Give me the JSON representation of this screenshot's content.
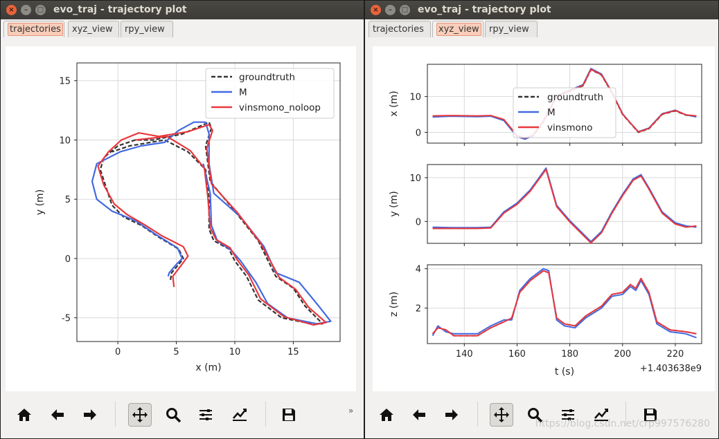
{
  "window_left": {
    "title": "evo_traj - trajectory plot",
    "close_glyph": "×",
    "min_glyph": "–",
    "max_glyph": "□",
    "tabs": [
      "trajectories",
      "xyz_view",
      "rpy_view"
    ],
    "active_tab": "trajectories"
  },
  "window_right": {
    "title": "evo_traj - trajectory plot",
    "close_glyph": "×",
    "min_glyph": "–",
    "max_glyph": "□",
    "tabs": [
      "trajectories",
      "xyz_view",
      "rpy_view"
    ],
    "active_tab": "xyz_view"
  },
  "toolbar": {
    "icons": [
      "home-icon",
      "back-arrow-icon",
      "forward-arrow-icon",
      "pan-icon",
      "zoom-icon",
      "subplots-icon",
      "edit-axes-icon",
      "save-icon"
    ],
    "more": "»"
  },
  "watermark": "https://blog.csdn.net/crp997576280",
  "colors": {
    "groundtruth": "#333333",
    "M": "#4169e1",
    "vinsmono": "#e8383d"
  },
  "chart_data": [
    {
      "type": "line",
      "id": "trajectories",
      "xlabel": "x (m)",
      "ylabel": "y (m)",
      "xlim": [
        -3.5,
        19
      ],
      "ylim": [
        -7,
        16.5
      ],
      "xticks": [
        0,
        5,
        10,
        15
      ],
      "yticks": [
        -5,
        0,
        5,
        10,
        15
      ],
      "grid": true,
      "legend_position": "top-right",
      "legend": [
        "groundtruth",
        "M",
        "vinsmono_noloop"
      ],
      "series": [
        {
          "name": "groundtruth",
          "style": "dashed",
          "x": [
            4.5,
            4.6,
            5.2,
            5.6,
            5.2,
            3.5,
            2.0,
            0.5,
            -0.5,
            -1.0,
            -1.5,
            -1.2,
            0.0,
            1.5,
            3.0,
            5.5,
            7.8,
            8.0,
            7.5,
            7.9,
            10.0,
            12.0,
            13.5,
            15.0,
            16.0,
            17.5,
            16.5,
            14.0,
            12.0,
            11.0,
            10.0,
            9.5,
            8.2,
            7.8,
            7.8,
            7.5,
            6.0,
            4.0,
            1.0,
            -0.5
          ],
          "y": [
            -1.8,
            -1.2,
            -0.5,
            0.0,
            0.8,
            1.8,
            2.8,
            3.5,
            4.5,
            6.0,
            7.5,
            8.5,
            9.5,
            10.0,
            10.0,
            10.5,
            11.5,
            11.0,
            9.5,
            6.5,
            4.0,
            1.5,
            -1.5,
            -2.5,
            -4.0,
            -5.5,
            -5.5,
            -5.0,
            -3.5,
            -1.5,
            -0.2,
            0.8,
            1.5,
            2.5,
            5.0,
            7.5,
            9.0,
            10.0,
            9.5,
            9.0
          ]
        },
        {
          "name": "M",
          "style": "solid",
          "x": [
            4.3,
            4.4,
            5.0,
            5.5,
            5.1,
            3.3,
            1.5,
            -0.5,
            -1.8,
            -2.2,
            -1.8,
            0.2,
            2.0,
            4.0,
            5.2,
            6.5,
            7.5,
            7.8,
            7.8,
            8.2,
            10.5,
            12.5,
            13.5,
            15.5,
            17.0,
            18.2,
            17.0,
            14.5,
            12.8,
            11.8,
            10.5,
            9.7,
            8.5,
            8.0,
            7.9,
            7.3
          ],
          "y": [
            -1.5,
            -1.2,
            -0.5,
            0.0,
            0.9,
            2.0,
            3.2,
            4.0,
            5.0,
            6.5,
            8.0,
            9.0,
            9.5,
            9.8,
            10.8,
            11.5,
            11.5,
            10.5,
            8.0,
            5.5,
            3.5,
            1.0,
            -1.2,
            -2.0,
            -3.8,
            -5.3,
            -5.5,
            -5.0,
            -3.8,
            -2.0,
            -0.2,
            0.7,
            1.5,
            2.8,
            5.5,
            8.0
          ]
        },
        {
          "name": "vinsmono_noloop",
          "style": "solid",
          "x": [
            4.8,
            4.7,
            5.4,
            6.0,
            5.6,
            3.8,
            2.2,
            0.8,
            -0.3,
            -1.2,
            -1.7,
            -0.8,
            0.3,
            1.8,
            3.5,
            6.0,
            7.8,
            8.1,
            7.6,
            8.0,
            10.2,
            12.2,
            13.8,
            15.2,
            16.3,
            17.8,
            16.7,
            14.2,
            12.2,
            11.2,
            10.2,
            9.6,
            8.4,
            7.9,
            7.7,
            7.4,
            6.2,
            4.2,
            1.5
          ],
          "y": [
            -2.4,
            -1.5,
            -0.6,
            0.2,
            1.0,
            1.9,
            2.9,
            3.7,
            4.6,
            6.2,
            7.8,
            9.0,
            10.0,
            10.6,
            10.3,
            10.7,
            11.3,
            10.8,
            9.3,
            6.3,
            3.9,
            1.3,
            -1.6,
            -2.6,
            -4.1,
            -5.4,
            -5.6,
            -4.9,
            -3.4,
            -1.4,
            -0.1,
            0.9,
            1.6,
            2.6,
            5.1,
            7.6,
            9.1,
            10.3,
            10.0
          ]
        }
      ]
    },
    {
      "type": "line",
      "id": "xyz_view",
      "xlabel": "t (s)",
      "x_offset_label": "+1.403638e9",
      "xlim": [
        126,
        230
      ],
      "xticks": [
        140,
        160,
        180,
        200,
        220
      ],
      "grid": true,
      "legend_position": "center",
      "legend": [
        "groundtruth",
        "M",
        "vinsmono"
      ],
      "subplots": [
        {
          "ylabel": "x (m)",
          "ylim": [
            -3,
            19
          ],
          "yticks": [
            0,
            10
          ],
          "t": [
            128,
            135,
            145,
            150,
            155,
            160,
            163,
            166,
            170,
            175,
            180,
            185,
            188,
            192,
            196,
            200,
            203,
            206,
            210,
            215,
            220,
            224,
            228
          ],
          "groundtruth": [
            4.5,
            4.6,
            4.5,
            4.6,
            3.5,
            -1.0,
            -1.8,
            -1.0,
            3.0,
            10.0,
            11.5,
            13.0,
            17.5,
            16.0,
            11.0,
            5.0,
            2.5,
            0.0,
            1.0,
            5.0,
            6.0,
            4.8,
            4.5
          ],
          "M": [
            4.3,
            4.5,
            4.4,
            4.5,
            3.3,
            -1.2,
            -1.9,
            -1.0,
            3.2,
            10.2,
            11.8,
            13.3,
            17.8,
            16.3,
            11.2,
            5.2,
            2.6,
            0.2,
            1.2,
            5.2,
            6.2,
            4.9,
            4.3
          ],
          "vinsmono": [
            4.6,
            4.7,
            4.6,
            4.7,
            3.6,
            -0.9,
            -1.6,
            -0.8,
            3.1,
            10.1,
            11.6,
            13.1,
            17.6,
            16.1,
            11.1,
            5.1,
            2.6,
            0.1,
            1.1,
            5.1,
            6.1,
            4.9,
            4.6
          ]
        },
        {
          "ylabel": "y (m)",
          "ylim": [
            -5,
            13
          ],
          "yticks": [
            0,
            10
          ],
          "t": [
            128,
            135,
            145,
            150,
            155,
            160,
            165,
            168,
            171,
            175,
            180,
            185,
            188,
            192,
            196,
            200,
            204,
            207,
            210,
            215,
            220,
            224,
            228
          ],
          "groundtruth": [
            -1.5,
            -1.5,
            -1.5,
            -1.4,
            2.0,
            4.0,
            7.0,
            9.5,
            12.0,
            3.5,
            0.0,
            -3.0,
            -4.8,
            -2.5,
            2.0,
            6.0,
            9.5,
            10.5,
            7.5,
            2.0,
            -0.5,
            -1.2,
            -1.1
          ],
          "M": [
            -1.3,
            -1.4,
            -1.4,
            -1.3,
            2.2,
            4.2,
            7.2,
            9.7,
            12.2,
            3.7,
            0.2,
            -2.8,
            -4.6,
            -2.3,
            2.2,
            6.2,
            9.7,
            10.7,
            7.7,
            2.2,
            -0.3,
            -1.0,
            -1.3
          ],
          "vinsmono": [
            -1.6,
            -1.6,
            -1.6,
            -1.5,
            1.9,
            3.9,
            6.9,
            9.4,
            11.9,
            3.4,
            -0.1,
            -3.1,
            -4.9,
            -2.6,
            1.9,
            5.9,
            9.4,
            10.4,
            7.4,
            1.9,
            -0.6,
            -1.3,
            -1.0
          ]
        },
        {
          "ylabel": "z (m)",
          "ylim": [
            0.2,
            4.2
          ],
          "yticks": [
            2,
            4
          ],
          "t": [
            128,
            130,
            133,
            136,
            145,
            150,
            155,
            158,
            161,
            165,
            170,
            172,
            175,
            178,
            182,
            186,
            192,
            196,
            200,
            203,
            205,
            207,
            210,
            213,
            218,
            224,
            228
          ],
          "groundtruth": [
            0.7,
            1.0,
            0.9,
            0.6,
            0.6,
            1.0,
            1.3,
            1.5,
            2.8,
            3.4,
            3.9,
            3.8,
            1.5,
            1.2,
            1.1,
            1.6,
            2.1,
            2.7,
            2.8,
            3.2,
            3.0,
            3.5,
            2.8,
            1.3,
            0.9,
            0.8,
            0.7
          ],
          "M": [
            0.6,
            1.1,
            0.8,
            0.7,
            0.7,
            1.1,
            1.4,
            1.4,
            2.9,
            3.5,
            4.0,
            3.9,
            1.4,
            1.1,
            1.0,
            1.5,
            2.0,
            2.6,
            2.7,
            3.1,
            2.9,
            3.4,
            2.7,
            1.2,
            0.8,
            0.7,
            0.5
          ],
          "vinsmono": [
            0.7,
            1.0,
            0.9,
            0.6,
            0.6,
            1.0,
            1.3,
            1.5,
            2.8,
            3.4,
            3.9,
            3.8,
            1.5,
            1.2,
            1.1,
            1.6,
            2.1,
            2.7,
            2.8,
            3.2,
            3.0,
            3.5,
            2.8,
            1.3,
            0.9,
            0.8,
            0.7
          ]
        }
      ]
    }
  ]
}
